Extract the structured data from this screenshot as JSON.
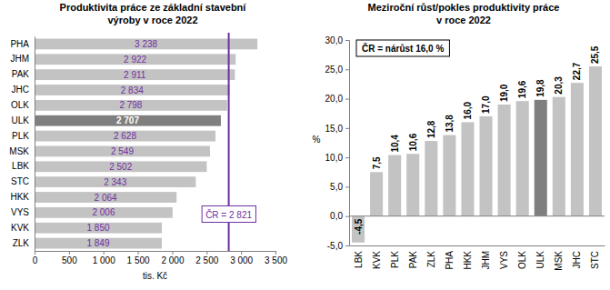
{
  "chart_data": [
    {
      "type": "bar",
      "orientation": "horizontal",
      "title": [
        "Produktivita práce ze základní stavební",
        "výroby v roce 2022"
      ],
      "x_label": "tis. Kč",
      "categories": [
        "PHA",
        "JHM",
        "PAK",
        "JHC",
        "OLK",
        "ULK",
        "PLK",
        "MSK",
        "LBK",
        "STC",
        "HKK",
        "VYS",
        "KVK",
        "ZLK"
      ],
      "values": [
        3238,
        2922,
        2911,
        2834,
        2798,
        2707,
        2628,
        2549,
        2502,
        2343,
        2064,
        2006,
        1850,
        1849
      ],
      "value_labels": [
        "3 238",
        "2 922",
        "2 911",
        "2 834",
        "2 798",
        "2 707",
        "2 628",
        "2 549",
        "2 502",
        "2 343",
        "2 064",
        "2 006",
        "1 850",
        "1 849"
      ],
      "colors": [
        "#c3c3c3",
        "#c3c3c3",
        "#c3c3c3",
        "#c3c3c3",
        "#c3c3c3",
        "#7f7f7f",
        "#c3c3c3",
        "#c3c3c3",
        "#c3c3c3",
        "#c3c3c3",
        "#c3c3c3",
        "#c3c3c3",
        "#c3c3c3",
        "#c3c3c3"
      ],
      "xlim": [
        0,
        3500
      ],
      "xticks": [
        0,
        500,
        {
          "value": 1000,
          "label": "1 000"
        },
        {
          "value": 1500,
          "label": "1 500"
        },
        {
          "value": 2000,
          "label": "2 000"
        },
        {
          "value": 2500,
          "label": "2 500"
        },
        {
          "value": 3000,
          "label": "3 000"
        },
        {
          "value": 3500,
          "label": "3 500"
        }
      ],
      "grid": false,
      "data_labels": true,
      "reference_line": {
        "value": 2821,
        "label": "ČR = 2 821"
      }
    },
    {
      "type": "bar",
      "title": [
        "Meziroční růst/pokles produktivity  práce",
        "v roce 2022"
      ],
      "y_label": "%",
      "annotation": "ČR = nárůst 16,0 %",
      "categories": [
        "LBK",
        "KVK",
        "PLK",
        "PAK",
        "ZLK",
        "PHA",
        "HKK",
        "JHM",
        "VYS",
        "OLK",
        "ULK",
        "MSK",
        "JHC",
        "STC"
      ],
      "values": [
        -4.5,
        7.5,
        10.4,
        10.6,
        12.8,
        13.8,
        16.0,
        17.0,
        19.0,
        19.6,
        19.8,
        20.3,
        22.7,
        25.5
      ],
      "value_labels": [
        "-4,5",
        "7,5",
        "10,4",
        "10,6",
        "12,8",
        "13,8",
        "16,0",
        "17,0",
        "19,0",
        "19,6",
        "19,8",
        "20,3",
        "22,7",
        "25,5"
      ],
      "colors": [
        "#c3c3c3",
        "#c3c3c3",
        "#c3c3c3",
        "#c3c3c3",
        "#c3c3c3",
        "#c3c3c3",
        "#c3c3c3",
        "#c3c3c3",
        "#c3c3c3",
        "#c3c3c3",
        "#7f7f7f",
        "#c3c3c3",
        "#c3c3c3",
        "#c3c3c3"
      ],
      "ylim": [
        -5,
        30
      ],
      "yticks": [
        {
          "value": -5,
          "label": "-5,0"
        },
        {
          "value": 0,
          "label": "0,0"
        },
        {
          "value": 5,
          "label": "5,0"
        },
        {
          "value": 10,
          "label": "10,0"
        },
        {
          "value": 15,
          "label": "15,0"
        },
        {
          "value": 20,
          "label": "20,0"
        },
        {
          "value": 25,
          "label": "25,0"
        },
        {
          "value": 30,
          "label": "30,0"
        }
      ],
      "grid": false,
      "data_labels": true
    }
  ]
}
